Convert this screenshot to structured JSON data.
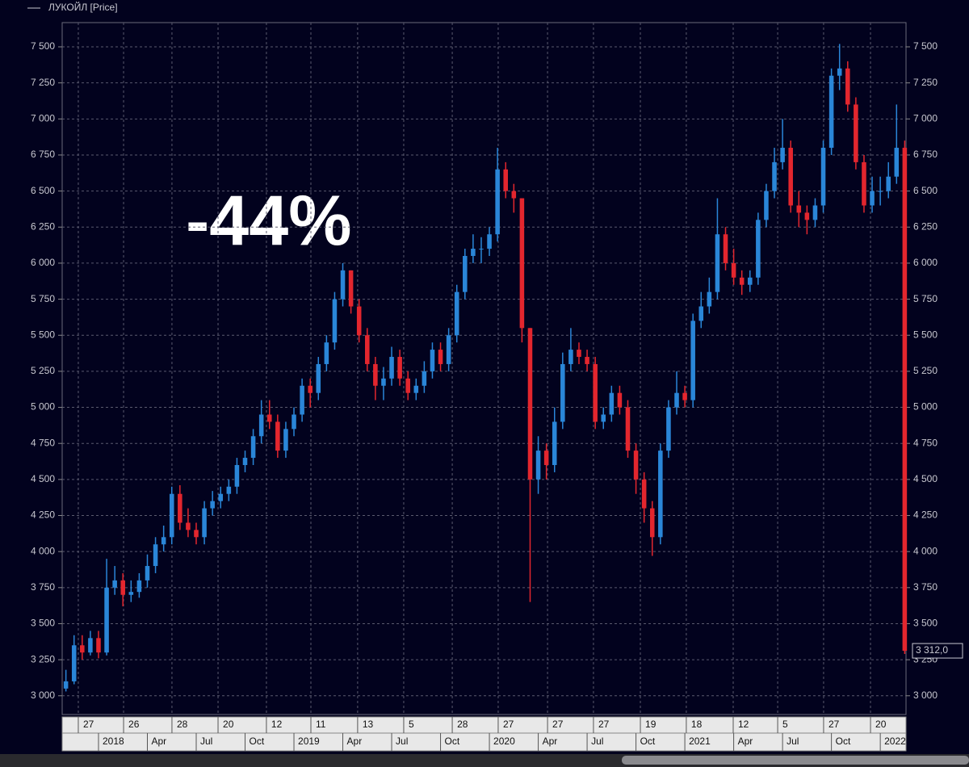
{
  "chart_data": {
    "type": "candlestick",
    "legend": "ЛУКОЙЛ [Price]",
    "annotation": "-44%",
    "up_color": "#2a86d8",
    "down_color": "#e3262e",
    "grid": true,
    "x": [
      -2,
      -1.5,
      -1,
      -0.5,
      0,
      0.5,
      1,
      1.5,
      2,
      2.5,
      3,
      3.5,
      4,
      4.5,
      5,
      5.5,
      6,
      6.5,
      7,
      7.5,
      8,
      8.5,
      9,
      9.5,
      10,
      10.5,
      11,
      11.5,
      12,
      12.5,
      13,
      13.5,
      14,
      14.5,
      15,
      15.5,
      16,
      16.5,
      17,
      17.5,
      18,
      18.5,
      19,
      19.5,
      20,
      20.5,
      21,
      21.5,
      22,
      22.5,
      23,
      23.5,
      24,
      24.5,
      25,
      25.5,
      26,
      26.5,
      27,
      27.5,
      28,
      28.5,
      29,
      29.5,
      30,
      30.5,
      31,
      31.5,
      32,
      32.5,
      33,
      33.5,
      34,
      34.5,
      35,
      35.5,
      36,
      36.5,
      37,
      37.5,
      38,
      38.5,
      39,
      39.5,
      40,
      40.5,
      41,
      41.5,
      42,
      42.5,
      43,
      43.5,
      44,
      44.5,
      45,
      45.5,
      46,
      46.5,
      47,
      47.5,
      48,
      48.5,
      49,
      49.5
    ],
    "open": [
      3050,
      3100,
      3350,
      3300,
      3400,
      3300,
      3750,
      3800,
      3700,
      3720,
      3800,
      3900,
      4050,
      4100,
      4400,
      4200,
      4150,
      4100,
      4300,
      4350,
      4400,
      4450,
      4600,
      4650,
      4800,
      4950,
      4900,
      4700,
      4850,
      4950,
      5150,
      5100,
      5300,
      5450,
      5750,
      5950,
      5700,
      5500,
      5300,
      5150,
      5200,
      5350,
      5200,
      5100,
      5150,
      5250,
      5400,
      5300,
      5500,
      5800,
      6050,
      6100,
      6100,
      6200,
      6650,
      6500,
      6450,
      5550,
      4500,
      4700,
      4600,
      4900,
      5300,
      5400,
      5350,
      5300,
      4900,
      4950,
      5100,
      5000,
      4700,
      4500,
      4300,
      4100,
      4700,
      5000,
      5100,
      5050,
      5600,
      5700,
      5800,
      6200,
      6000,
      5900,
      5850,
      5900,
      6300,
      6500,
      6700,
      6800,
      6400,
      6350,
      6300,
      6400,
      6800,
      7300,
      7350,
      7100,
      6700,
      6400,
      6500,
      6500,
      6600,
      6800
    ],
    "high": [
      3180,
      3420,
      3420,
      3450,
      3450,
      3950,
      3900,
      3850,
      3800,
      3850,
      3980,
      4100,
      4180,
      4450,
      4460,
      4300,
      4200,
      4350,
      4420,
      4450,
      4500,
      4650,
      4700,
      4850,
      5050,
      5050,
      4950,
      4900,
      5000,
      5200,
      5200,
      5350,
      5500,
      5800,
      6000,
      5950,
      5750,
      5550,
      5350,
      5280,
      5420,
      5400,
      5250,
      5200,
      5320,
      5450,
      5450,
      5550,
      5850,
      6100,
      6200,
      6180,
      6250,
      6800,
      6700,
      6550,
      6450,
      5550,
      4800,
      4750,
      5000,
      5380,
      5550,
      5450,
      5400,
      5350,
      5000,
      5150,
      5150,
      5050,
      4750,
      4550,
      4350,
      4750,
      5050,
      5250,
      5150,
      5650,
      5800,
      5900,
      6450,
      6250,
      6100,
      5950,
      5950,
      6350,
      6550,
      6800,
      7000,
      6850,
      6500,
      6400,
      6450,
      6850,
      7350,
      7520,
      7400,
      7150,
      6750,
      6600,
      6600,
      6700,
      7100,
      6850
    ],
    "low": [
      3030,
      3080,
      3250,
      3280,
      3260,
      3280,
      3700,
      3620,
      3650,
      3680,
      3750,
      3850,
      4000,
      4050,
      4150,
      4100,
      4050,
      4050,
      4250,
      4300,
      4350,
      4400,
      4550,
      4600,
      4750,
      4850,
      4650,
      4650,
      4800,
      4900,
      5000,
      5050,
      5250,
      5400,
      5700,
      5650,
      5450,
      5250,
      5050,
      5050,
      5150,
      5150,
      5050,
      5050,
      5100,
      5200,
      5250,
      5250,
      5450,
      5750,
      6000,
      6000,
      6050,
      6150,
      6450,
      6350,
      5450,
      3650,
      4400,
      4500,
      4550,
      4850,
      5250,
      5300,
      5250,
      4850,
      4850,
      4900,
      4950,
      4650,
      4400,
      4200,
      3970,
      4050,
      4650,
      4950,
      5000,
      5000,
      5550,
      5650,
      5750,
      5950,
      5850,
      5780,
      5800,
      5850,
      6250,
      6450,
      6650,
      6350,
      6250,
      6200,
      6250,
      6350,
      6750,
      7200,
      7050,
      6650,
      6350,
      6350,
      6400,
      6450,
      6550,
      3290
    ],
    "close": [
      3100,
      3350,
      3300,
      3400,
      3300,
      3750,
      3800,
      3700,
      3720,
      3800,
      3900,
      4050,
      4100,
      4400,
      4200,
      4150,
      4100,
      4300,
      4350,
      4400,
      4450,
      4600,
      4650,
      4800,
      4950,
      4900,
      4700,
      4850,
      4950,
      5150,
      5100,
      5300,
      5450,
      5750,
      5950,
      5700,
      5500,
      5300,
      5150,
      5200,
      5350,
      5200,
      5100,
      5150,
      5250,
      5400,
      5300,
      5500,
      5800,
      6050,
      6100,
      6100,
      6200,
      6650,
      6500,
      6450,
      5550,
      4500,
      4700,
      4600,
      4900,
      5300,
      5400,
      5350,
      5300,
      4900,
      4950,
      5100,
      5000,
      4700,
      4500,
      4300,
      4100,
      4700,
      5000,
      5100,
      5050,
      5600,
      5700,
      5800,
      6200,
      6000,
      5900,
      5850,
      5900,
      6300,
      6500,
      6700,
      6800,
      6400,
      6350,
      6300,
      6400,
      6800,
      7300,
      7350,
      7100,
      6700,
      6400,
      6500,
      6500,
      6600,
      6800,
      3312
    ],
    "last_price": {
      "value": 3312,
      "label": "3 312,0"
    },
    "xlim": [
      -2.23,
      49.58
    ],
    "xticks": [
      {
        "value": -1.24,
        "label": "27"
      },
      {
        "value": 1.54,
        "label": "26"
      },
      {
        "value": 4.51,
        "label": "28"
      },
      {
        "value": 7.34,
        "label": "20"
      },
      {
        "value": 10.31,
        "label": "12"
      },
      {
        "value": 13.04,
        "label": "11"
      },
      {
        "value": 15.91,
        "label": "13"
      },
      {
        "value": 18.74,
        "label": "5"
      },
      {
        "value": 21.72,
        "label": "28"
      },
      {
        "value": 24.54,
        "label": "27"
      },
      {
        "value": 27.57,
        "label": "27"
      },
      {
        "value": 30.39,
        "label": "27"
      },
      {
        "value": 33.27,
        "label": "19"
      },
      {
        "value": 36.09,
        "label": "18"
      },
      {
        "value": 38.97,
        "label": "12"
      },
      {
        "value": 41.7,
        "label": "5"
      },
      {
        "value": 44.52,
        "label": "27"
      },
      {
        "value": 47.4,
        "label": "20"
      }
    ],
    "xticks_period": [
      {
        "value": 0,
        "label": "2018"
      },
      {
        "value": 3,
        "label": "Apr"
      },
      {
        "value": 6,
        "label": "Jul"
      },
      {
        "value": 9,
        "label": "Oct"
      },
      {
        "value": 12,
        "label": "2019"
      },
      {
        "value": 15,
        "label": "Apr"
      },
      {
        "value": 18,
        "label": "Jul"
      },
      {
        "value": 21,
        "label": "Oct"
      },
      {
        "value": 24,
        "label": "2020"
      },
      {
        "value": 27,
        "label": "Apr"
      },
      {
        "value": 30,
        "label": "Jul"
      },
      {
        "value": 33,
        "label": "Oct"
      },
      {
        "value": 36,
        "label": "2021"
      },
      {
        "value": 39,
        "label": "Apr"
      },
      {
        "value": 42,
        "label": "Jul"
      },
      {
        "value": 45,
        "label": "Oct"
      },
      {
        "value": 48,
        "label": "2022"
      }
    ],
    "ylim": [
      2870,
      7668
    ],
    "yticks": [
      {
        "value": 3000,
        "label": "3 000"
      },
      {
        "value": 3250,
        "label": "3 250"
      },
      {
        "value": 3500,
        "label": "3 500"
      },
      {
        "value": 3750,
        "label": "3 750"
      },
      {
        "value": 4000,
        "label": "4 000"
      },
      {
        "value": 4250,
        "label": "4 250"
      },
      {
        "value": 4500,
        "label": "4 500"
      },
      {
        "value": 4750,
        "label": "4 750"
      },
      {
        "value": 5000,
        "label": "5 000"
      },
      {
        "value": 5250,
        "label": "5 250"
      },
      {
        "value": 5500,
        "label": "5 500"
      },
      {
        "value": 5750,
        "label": "5 750"
      },
      {
        "value": 6000,
        "label": "6 000"
      },
      {
        "value": 6250,
        "label": "6 250"
      },
      {
        "value": 6500,
        "label": "6 500"
      },
      {
        "value": 6750,
        "label": "6 750"
      },
      {
        "value": 7000,
        "label": "7 000"
      },
      {
        "value": 7250,
        "label": "7 250"
      },
      {
        "value": 7500,
        "label": "7 500"
      }
    ]
  }
}
